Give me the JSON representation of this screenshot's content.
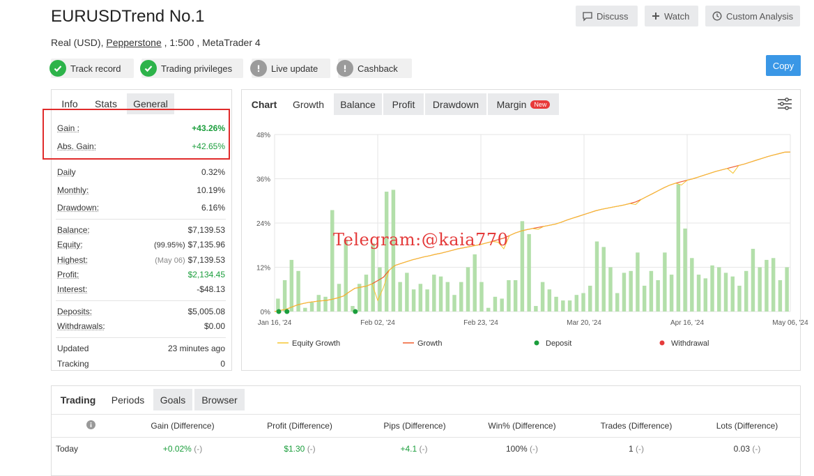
{
  "header": {
    "title": "EURUSDTrend No.1",
    "account_type": "Real (USD), ",
    "broker": "Pepperstone",
    "details": " , 1:500 , MetaTrader 4",
    "discuss_label": "Discuss",
    "watch_label": "Watch",
    "custom_analysis_label": "Custom Analysis",
    "copy_label": "Copy"
  },
  "badges": [
    {
      "label": "Track record",
      "status": "ok"
    },
    {
      "label": "Trading privileges",
      "status": "ok"
    },
    {
      "label": "Live update",
      "status": "na"
    },
    {
      "label": "Cashback",
      "status": "na"
    }
  ],
  "info_tabs": [
    "Info",
    "Stats",
    "General"
  ],
  "info": {
    "gain": {
      "label": "Gain :",
      "value": "+43.26%"
    },
    "abs_gain": {
      "label": "Abs. Gain:",
      "value": "+42.65%"
    },
    "daily": {
      "label": "Daily",
      "value": "0.32%"
    },
    "monthly": {
      "label": "Monthly:",
      "value": "10.19%"
    },
    "drawdown": {
      "label": "Drawdown:",
      "value": "6.16%"
    },
    "balance": {
      "label": "Balance:",
      "value": "$7,139.53"
    },
    "equity": {
      "label": "Equity:",
      "note": "(99.95%)",
      "value": "$7,135.96"
    },
    "highest": {
      "label": "Highest:",
      "note": "(May 06)",
      "value": "$7,139.53"
    },
    "profit": {
      "label": "Profit:",
      "value": "$2,134.45"
    },
    "interest": {
      "label": "Interest:",
      "value": "-$48.13"
    },
    "deposits": {
      "label": "Deposits:",
      "value": "$5,005.08"
    },
    "withdrawals": {
      "label": "Withdrawals:",
      "value": "$0.00"
    },
    "updated": {
      "label": "Updated",
      "value": "23 minutes ago"
    },
    "tracking": {
      "label": "Tracking",
      "value": "0"
    }
  },
  "chart_tabs": {
    "chart": "Chart",
    "growth": "Growth",
    "balance": "Balance",
    "profit": "Profit",
    "drawdown": "Drawdown",
    "margin": "Margin",
    "new_tag": "New"
  },
  "watermark": "Telegram:@kaia770",
  "chart_data": {
    "type": "line",
    "colors": {
      "equity": "#f5c531",
      "growth": "#ef5a2a",
      "bars": "#b3dfaa",
      "deposit": "#1b9e3c",
      "withdrawal": "#e53b3b"
    },
    "y_ticks": [
      "48%",
      "36%",
      "24%",
      "12%",
      "0%"
    ],
    "ylim": [
      0,
      48
    ],
    "x_ticks": [
      "Jan 16, '24",
      "Feb 02, '24",
      "Feb 23, '24",
      "Mar 20, '24",
      "Apr 16, '24",
      "May 06, '24"
    ],
    "legend": [
      "Equity Growth",
      "Growth",
      "Deposit",
      "Withdrawal"
    ],
    "legend_position": "bottom",
    "grid": true,
    "growth": [
      0,
      0.3,
      0.6,
      1.2,
      1.8,
      2.2,
      2.5,
      2.7,
      2.9,
      3.0,
      3.3,
      3.7,
      4.2,
      5.3,
      6.3,
      6.6,
      6.9,
      7.5,
      8.4,
      9.3,
      11.2,
      12.5,
      13.0,
      13.5,
      14.0,
      14.4,
      14.8,
      15.1,
      15.5,
      15.8,
      16.2,
      16.6,
      17.0,
      17.3,
      17.6,
      17.9,
      18.2,
      18.6,
      19.0,
      19.5,
      19.9,
      20.6,
      21.3,
      21.8,
      22.2,
      22.5,
      22.8,
      23.1,
      23.4,
      23.7,
      24.2,
      24.8,
      25.3,
      25.8,
      26.3,
      26.8,
      27.3,
      27.7,
      28.0,
      28.3,
      28.6,
      28.9,
      29.3,
      29.7,
      30.4,
      31.2,
      32.0,
      32.8,
      33.6,
      34.3,
      34.8,
      35.2,
      35.6,
      36.0,
      36.5,
      37.0,
      37.5,
      38.0,
      38.4,
      38.8,
      39.2,
      39.6,
      40.0,
      40.5,
      41.0,
      41.5,
      42.0,
      42.4,
      42.8,
      43.2,
      43.26
    ],
    "equity": [
      0,
      0.3,
      0.6,
      1.2,
      1.8,
      2.2,
      2.5,
      2.7,
      2.9,
      3.0,
      3.3,
      3.7,
      4.2,
      5.3,
      6.3,
      6.6,
      6.9,
      7.5,
      3.0,
      6.5,
      11.2,
      12.5,
      13.0,
      13.5,
      14.0,
      14.4,
      14.8,
      15.1,
      15.5,
      15.8,
      16.2,
      16.6,
      17.0,
      17.3,
      17.6,
      17.9,
      18.2,
      18.6,
      19.0,
      18.8,
      17.0,
      20.6,
      21.3,
      21.8,
      22.2,
      22.5,
      22.3,
      23.1,
      23.4,
      23.7,
      24.2,
      24.8,
      25.3,
      25.8,
      26.3,
      26.8,
      27.3,
      27.7,
      28.0,
      28.3,
      28.6,
      28.9,
      29.3,
      29.0,
      30.4,
      31.2,
      32.0,
      32.8,
      33.6,
      34.3,
      34.8,
      34.3,
      35.6,
      36.0,
      36.5,
      37.0,
      37.5,
      38.0,
      38.4,
      38.8,
      37.5,
      39.6,
      40.0,
      40.5,
      41.0,
      41.5,
      42.0,
      42.4,
      42.8,
      43.2,
      43.26
    ],
    "bars": [
      3.5,
      8.5,
      14,
      11,
      1,
      2.5,
      4.5,
      4,
      27.5,
      7.5,
      19.5,
      1.5,
      7.5,
      10,
      18.5,
      12,
      32.5,
      33,
      8,
      10.5,
      6,
      7.5,
      6,
      10,
      9.5,
      8,
      4.5,
      8,
      12,
      15.5,
      8,
      1,
      4,
      3.5,
      8.5,
      8.5,
      24.5,
      21,
      1.5,
      8,
      6,
      4,
      3,
      3,
      4.5,
      5,
      7,
      19,
      17.5,
      12,
      5,
      10.5,
      11,
      16,
      7,
      11,
      8.5,
      16,
      10,
      34.5,
      22.5,
      14.5,
      10,
      9,
      12.5,
      12,
      10.5,
      9.5,
      7,
      11,
      17,
      12,
      14,
      14.5,
      8.5,
      12
    ],
    "deposits": [
      0,
      0.03,
      0.28
    ],
    "withdrawals": []
  },
  "bottom_tabs": [
    "Trading",
    "Periods",
    "Goals",
    "Browser"
  ],
  "periods_table": {
    "info_icon": "info-icon",
    "columns": [
      "Gain (Difference)",
      "Profit (Difference)",
      "Pips (Difference)",
      "Win% (Difference)",
      "Trades (Difference)",
      "Lots (Difference)"
    ],
    "rows": [
      {
        "label": "Today",
        "cells": [
          {
            "value": "+0.02%",
            "diff": "(-)",
            "green": true
          },
          {
            "value": "$1.30",
            "diff": "(-)",
            "green": true
          },
          {
            "value": "+4.1",
            "diff": "(-)",
            "green": true
          },
          {
            "value": "100%",
            "diff": "(-)",
            "green": false
          },
          {
            "value": "1",
            "diff": "(-)",
            "green": false
          },
          {
            "value": "0.03",
            "diff": "(-)",
            "green": false
          }
        ]
      }
    ]
  }
}
